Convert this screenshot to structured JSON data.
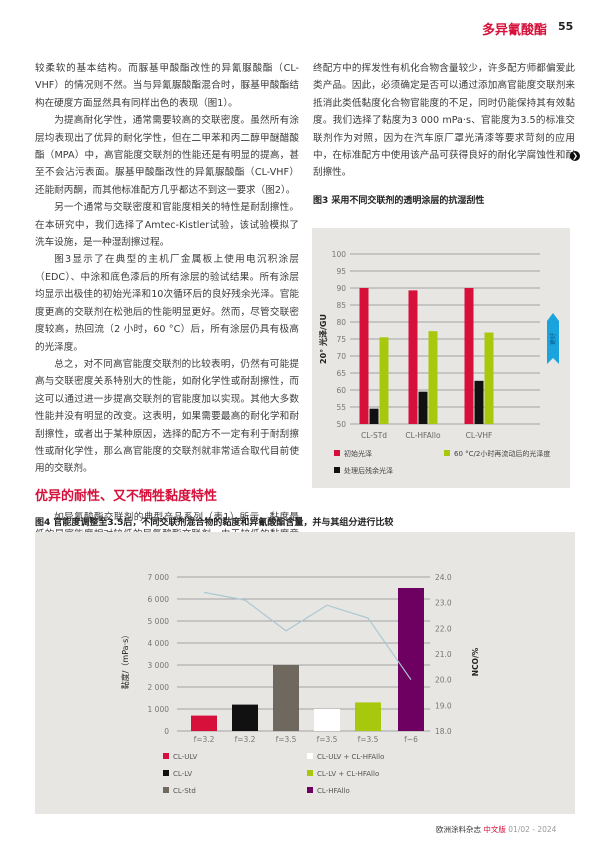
{
  "header": {
    "section_title": "多异氰酸酯",
    "page_number": "55"
  },
  "left_column": {
    "paragraphs": [
      "较柔软的基本结构。而脲基甲酸酯改性的异氰脲酸酯（CL-VHF）的情况则不然。当与异氰脲酸酯混合时，脲基甲酸酯结构在硬度方面显然具有同样出色的表现（图1）。",
      "为提高耐化学性，通常需要较高的交联密度。虽然所有涂层均表现出了优异的耐化学性，但在二甲苯和丙二醇甲醚醋酸酯（MPA）中，高官能度交联剂的性能还是有明显的提高，甚至不会沾污表面。脲基甲酸酯改性的异氰脲酸酯（CL-VHF）还能耐丙酮，而其他标准配方几乎都达不到这一要求（图2）。",
      "另一个通常与交联密度和官能度相关的特性是耐刮擦性。在本研究中，我们选择了Amtec-Kistler试验，该试验模拟了洗车设施，是一种湿刮擦过程。",
      "图3显示了在典型的主机厂金属板上使用电沉积涂层（EDC）、中涂和底色漆后的所有涂层的验试结果。所有涂层均显示出极佳的初始光泽和10次循环后的良好残余光泽。官能度更高的交联剂在松弛后的性能明显更好。然而，尽管交联密度较高，热回流（2 小时，60 °C）后，所有涂层仍具有极高的光泽度。",
      "总之，对不同高官能度交联剂的比较表明，仍然有可能提高与交联密度关系特别大的性能，如耐化学性或耐刮擦性，而这可以通过进一步提高交联剂的官能度加以实现。其他大多数性能并没有明显的改变。这表明，如果需要最高的耐化学和耐刮擦性，或者出于某种原因，选择的配方不一定有利于耐刮擦性或耐化学性，那么高官能度的交联剂就非常适合取代目前使用的交联剂。"
    ],
    "section_heading": "优异的耐性、又不牺牲黏度特性",
    "section_paragraph": "如异氰酸酯交联剂的典型产品系列（表1）所示，黏度最低的是官能度相对较低的异氰酸酯交联剂。由于较低的黏度意味着最"
  },
  "right_column": {
    "paragraph": "终配方中的挥发性有机化合物含量较少，许多配方师都偏爱此类产品。因此，必须确定是否可以通过添加高官能度交联剂来抵消此类低黏度化合物官能度的不足，同时仍能保持其有效黏度。我们选择了黏度为3 000 mPa·s、官能度为3.5的标准交联剂作为对照，因为在汽车原厂罩光清漆等要求苛刻的应用中，在标准配方中使用该产品可获得良好的耐化学腐蚀性和耐刮擦性。",
    "next_icon": "chevron-right-circle-icon"
  },
  "chart_data": [
    {
      "type": "bar",
      "title": "图3 采用不同交联剂的透明涂层的抗湿刮性",
      "ylabel": "20° 光泽/GU",
      "ylim": [
        50,
        100
      ],
      "yticks": [
        "100",
        "95",
        "90",
        "85",
        "80",
        "75",
        "70",
        "65",
        "60",
        "55",
        "50"
      ],
      "grid": true,
      "categories": [
        "CL-STd",
        "CL-HFAllo",
        "CL-VHF"
      ],
      "series": [
        {
          "name": "初始光泽",
          "color": "#d6103a",
          "values": [
            90,
            89.3,
            90
          ]
        },
        {
          "name": "处理后残余光泽",
          "color": "#111111",
          "values": [
            54.5,
            59.5,
            62.7
          ]
        },
        {
          "name": "60 °C/2小时再流动后的光泽度",
          "color": "#a8c80e",
          "values": [
            75.5,
            77.3,
            76.9
          ]
        }
      ],
      "annotation": {
        "label": "更好",
        "color": "#1aa3dc",
        "icon": "up-arrow-icon"
      },
      "legend_position": "bottom"
    },
    {
      "type": "bar",
      "title": "图4 官能度调整至3.5后，不同交联剂混合物的黏度和异氰酸酯含量，并与其组分进行比较",
      "ylabel": "黏度/（mPa·s）",
      "y2label": "NCO/%",
      "ylim": [
        0,
        7000
      ],
      "y2lim": [
        18.0,
        24.0
      ],
      "yticks": [
        "7 000",
        "6 000",
        "5 000",
        "4 000",
        "3 000",
        "2 000",
        "1 000",
        "0"
      ],
      "y2ticks": [
        "24.0",
        "23.0",
        "22.0",
        "21.0",
        "20.0",
        "19.0",
        "18.0"
      ],
      "grid": true,
      "categories": [
        "f=3.2",
        "f=3.2",
        "f=3.5",
        "f=3.5",
        "f=3.5",
        "f~6"
      ],
      "bars": [
        {
          "name": "CL-ULV",
          "color": "#d6103a",
          "value": 700
        },
        {
          "name": "CL-LV",
          "color": "#111111",
          "value": 1200
        },
        {
          "name": "CL-Std",
          "color": "#6e685e",
          "value": 3000
        },
        {
          "name": "CL-ULV + CL-HFAllo",
          "color": "#ffffff",
          "value": 1000
        },
        {
          "name": "CL-LV + CL-HFAllo",
          "color": "#a8c80e",
          "value": 1300
        },
        {
          "name": "CL-HFAllo",
          "color": "#6d0060",
          "value": 6500
        }
      ],
      "line": {
        "color": "#a9c9d0",
        "values": [
          23.4,
          23.1,
          21.9,
          22.9,
          22.4,
          20.0
        ]
      },
      "legend_position": "bottom"
    }
  ],
  "footer": {
    "magazine": "欧洲涂料杂志",
    "edition": "中文版",
    "issue": "01/02 - 2024"
  }
}
